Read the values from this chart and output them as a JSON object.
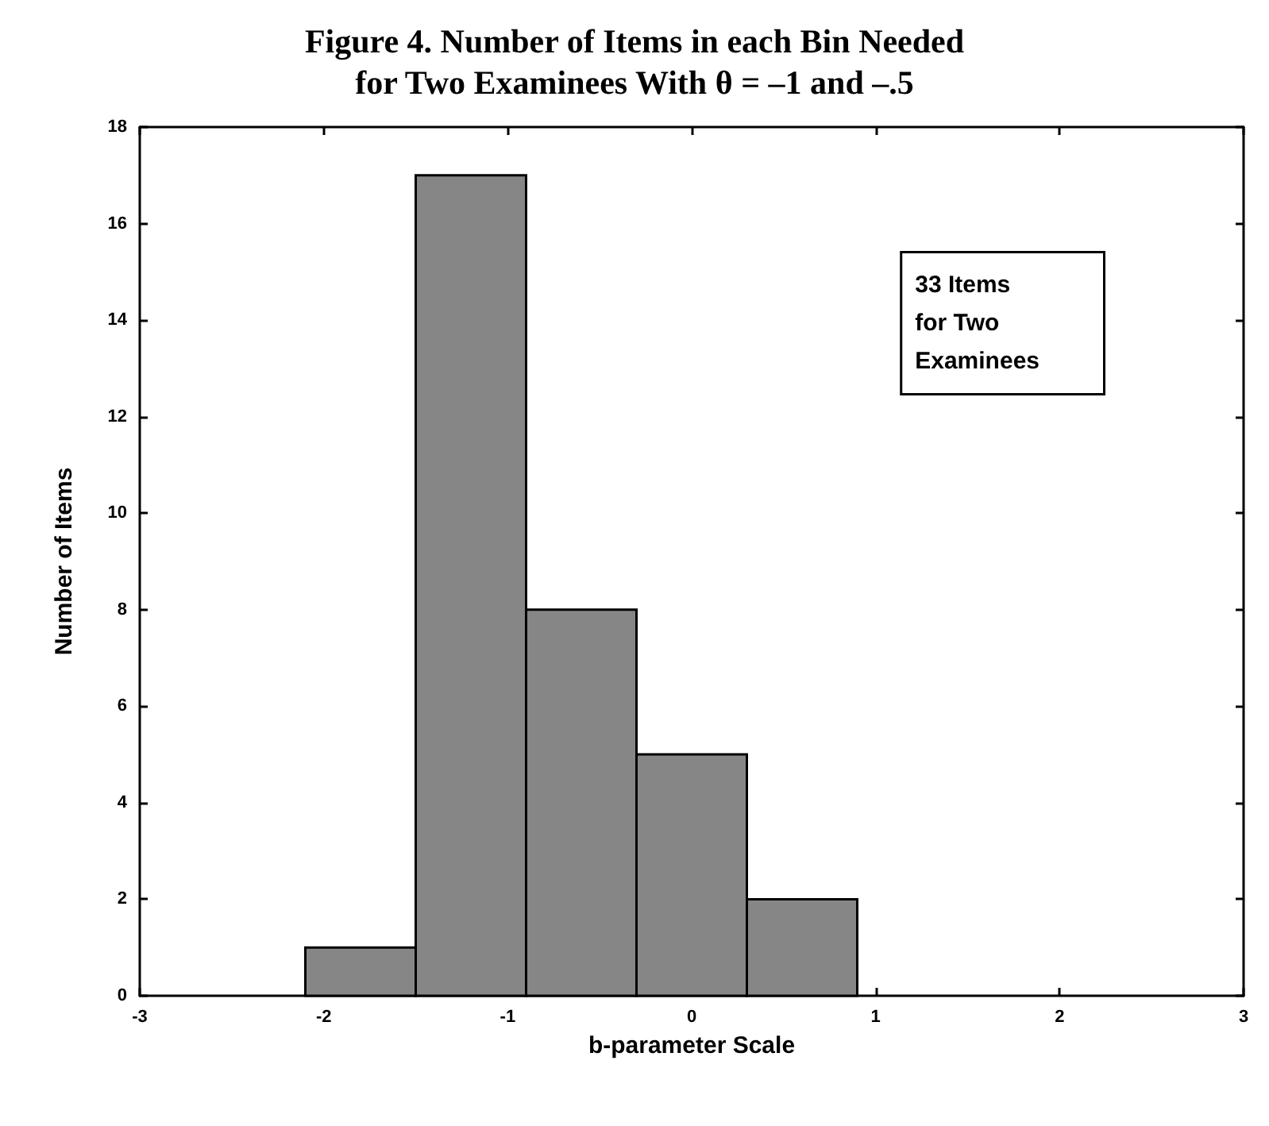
{
  "chart_data": {
    "type": "histogram",
    "title": "Figure 4. Number of Items in each Bin Needed\nfor Two Examinees With θ = –1 and –.5",
    "xlabel": "b-parameter Scale",
    "ylabel": "Number of Items",
    "bins": [
      -2.1,
      -1.5,
      -0.9,
      -0.3,
      0.3,
      0.9
    ],
    "values": [
      1,
      17,
      8,
      5,
      2
    ],
    "color": "#868686",
    "xlim": [
      -3,
      3
    ],
    "xticks": [
      -3,
      -2,
      -1,
      0,
      1,
      2,
      3
    ],
    "ylim": [
      0,
      18
    ],
    "yticks": [
      0,
      2,
      4,
      6,
      8,
      10,
      12,
      14,
      16,
      18
    ],
    "grid": false,
    "annotations": [
      "33 Items\nfor Two\nExaminees"
    ]
  }
}
